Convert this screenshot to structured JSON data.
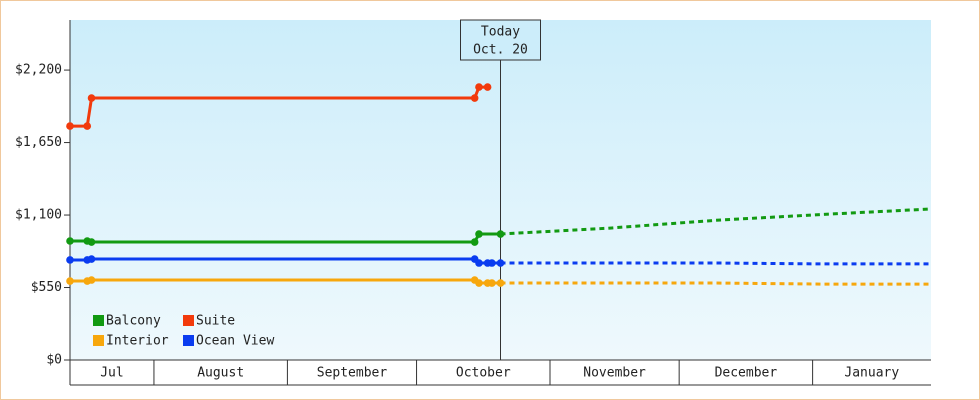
{
  "chart_data": {
    "type": "line",
    "xlim": [
      0,
      200
    ],
    "xticks": [
      19.5,
      50.5,
      80.5,
      111.5,
      141.5,
      172.5
    ],
    "months": [
      "Jul",
      "August",
      "September",
      "October",
      "November",
      "December",
      "January"
    ],
    "ylim": [
      0,
      2580
    ],
    "yticks": [
      {
        "value": 0,
        "label": "$0"
      },
      {
        "value": 550,
        "label": "$550"
      },
      {
        "value": 1100,
        "label": "$1,100"
      },
      {
        "value": 1650,
        "label": "$1,650"
      },
      {
        "value": 2200,
        "label": "$2,200"
      }
    ],
    "today": {
      "x": 100,
      "label": [
        "Today",
        "Oct. 20"
      ]
    },
    "legend": "lower left",
    "series": [
      {
        "name": "Balcony",
        "color": "#129a12",
        "x": [
          0,
          4,
          5,
          94,
          95,
          100
        ],
        "values": [
          903,
          903,
          895,
          895,
          956,
          956
        ],
        "forecast": {
          "x": [
            100,
            125,
            150,
            175,
            200
          ],
          "values": [
            956,
            1000,
            1060,
            1105,
            1146
          ]
        }
      },
      {
        "name": "Suite",
        "color": "#f23a0c",
        "x": [
          0,
          4,
          5,
          94,
          95,
          97
        ],
        "values": [
          1775,
          1775,
          1988,
          1988,
          2071,
          2071
        ]
      },
      {
        "name": "Interior",
        "color": "#f7a70d",
        "x": [
          0,
          4,
          5,
          94,
          95,
          97,
          98,
          100
        ],
        "values": [
          599,
          599,
          607,
          607,
          584,
          584,
          584,
          584
        ],
        "forecast": {
          "x": [
            100,
            125,
            150,
            175,
            200
          ],
          "values": [
            584,
            584,
            584,
            576,
            576
          ]
        }
      },
      {
        "name": "Ocean View",
        "color": "#0a3cf0",
        "x": [
          0,
          4,
          5,
          94,
          95,
          97,
          98,
          100
        ],
        "values": [
          759,
          759,
          766,
          766,
          736,
          736,
          736,
          736
        ],
        "forecast": {
          "x": [
            100,
            125,
            150,
            175,
            200
          ],
          "values": [
            736,
            736,
            736,
            729,
            729
          ]
        }
      }
    ]
  }
}
